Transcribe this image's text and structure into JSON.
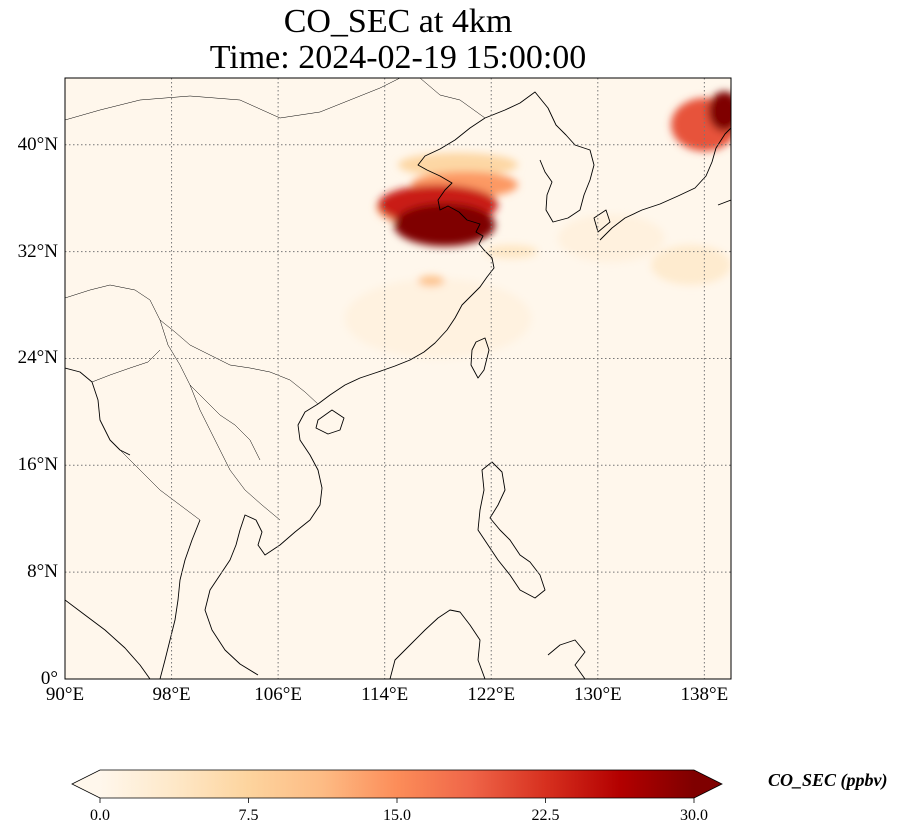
{
  "title": [
    "CO_SEC at 4km",
    "Time: 2024-02-19 15:00:00"
  ],
  "chart_data": {
    "type": "heatmap",
    "title": "CO_SEC at 4km",
    "subtitle": "Time: 2024-02-19 15:00:00",
    "variable": "CO_SEC",
    "units": "ppbv",
    "level": "4km",
    "time": "2024-02-19 15:00:00",
    "xlim": [
      90,
      140
    ],
    "ylim": [
      0,
      45
    ],
    "x_ticks": [
      90,
      98,
      106,
      114,
      122,
      130,
      138
    ],
    "x_tick_labels": [
      "90°E",
      "98°E",
      "106°E",
      "114°E",
      "122°E",
      "130°E",
      "138°E"
    ],
    "y_ticks": [
      0,
      8,
      16,
      24,
      32,
      40
    ],
    "y_tick_labels": [
      "0°",
      "8°N",
      "16°N",
      "24°N",
      "32°N",
      "40°N"
    ],
    "grid": true,
    "colormap": "OrRd",
    "colorbar": {
      "label": "CO_SEC (ppbv)",
      "range": [
        0,
        30
      ],
      "ticks": [
        0,
        7.5,
        15,
        22.5,
        30
      ],
      "tick_labels": [
        "0.0",
        "7.5",
        "15.0",
        "22.5",
        "30.0"
      ],
      "extend": "both",
      "colors": [
        "#fff7ec",
        "#fee8c8",
        "#fdd49e",
        "#fdbb84",
        "#fc8d59",
        "#ef6548",
        "#d7301f",
        "#b30000",
        "#7f0000"
      ]
    },
    "plumes": [
      {
        "lon": 118.5,
        "lat": 34.0,
        "rx": 3.8,
        "ry": 1.6,
        "value": 30
      },
      {
        "lon": 118.0,
        "lat": 35.5,
        "rx": 4.5,
        "ry": 1.5,
        "value": 24
      },
      {
        "lon": 120.0,
        "lat": 37.0,
        "rx": 4.0,
        "ry": 1.0,
        "value": 14
      },
      {
        "lon": 119.5,
        "lat": 38.5,
        "rx": 4.5,
        "ry": 0.9,
        "value": 7
      },
      {
        "lon": 116.0,
        "lat": 35.3,
        "rx": 2.6,
        "ry": 1.2,
        "value": 14
      },
      {
        "lon": 117.5,
        "lat": 29.8,
        "rx": 1.0,
        "ry": 0.4,
        "value": 10
      },
      {
        "lon": 123.5,
        "lat": 32.0,
        "rx": 2.0,
        "ry": 0.5,
        "value": 4
      },
      {
        "lon": 138.0,
        "lat": 41.5,
        "rx": 2.5,
        "ry": 2.0,
        "value": 20
      },
      {
        "lon": 139.5,
        "lat": 42.5,
        "rx": 1.2,
        "ry": 1.5,
        "value": 30
      },
      {
        "lon": 137.0,
        "lat": 31.0,
        "rx": 3.0,
        "ry": 1.5,
        "value": 3
      },
      {
        "lon": 131.0,
        "lat": 33.0,
        "rx": 4.0,
        "ry": 1.8,
        "value": 1.5
      },
      {
        "lon": 118.0,
        "lat": 27.0,
        "rx": 7.0,
        "ry": 3.0,
        "value": 1.2
      }
    ]
  }
}
